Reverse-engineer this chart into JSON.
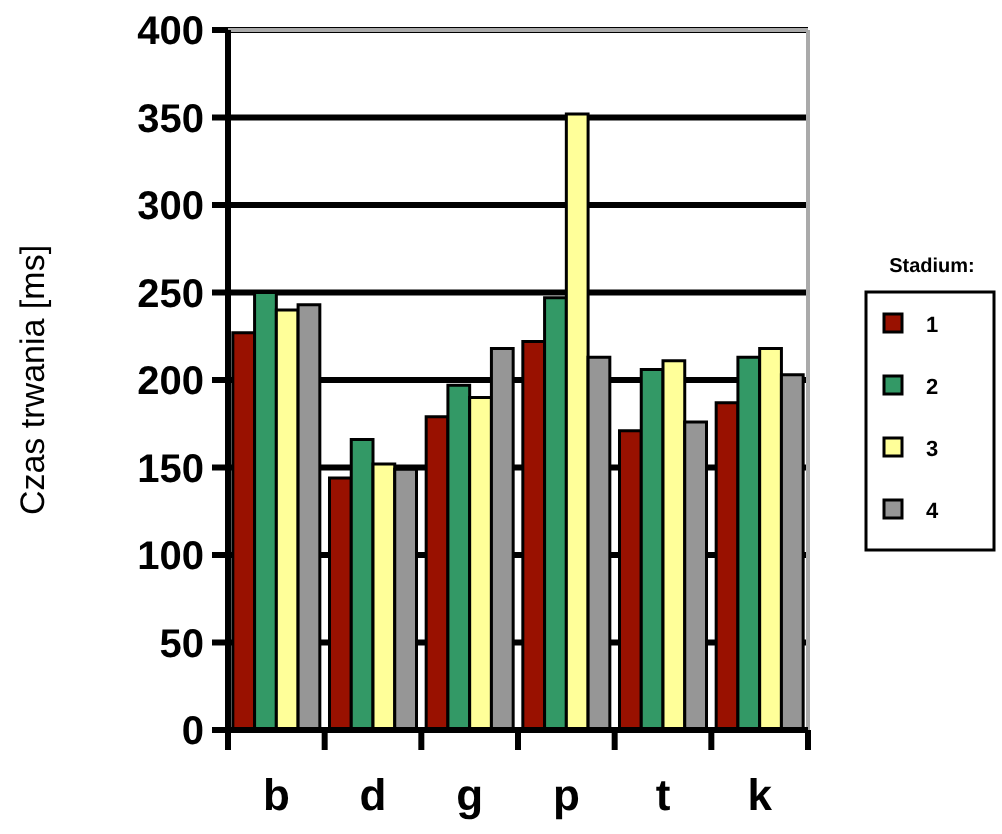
{
  "chart_data": {
    "type": "bar",
    "ylabel": "Czas trwania [ms]",
    "legend_title": "Stadium:",
    "categories": [
      "b",
      "d",
      "g",
      "p",
      "t",
      "k"
    ],
    "series": [
      {
        "name": "1",
        "color": "#991100",
        "values": [
          227,
          144,
          179,
          222,
          171,
          187
        ]
      },
      {
        "name": "2",
        "color": "#339966",
        "values": [
          250,
          166,
          197,
          247,
          206,
          213
        ]
      },
      {
        "name": "3",
        "color": "#ffff99",
        "values": [
          240,
          152,
          190,
          352,
          211,
          218
        ]
      },
      {
        "name": "4",
        "color": "#969696",
        "values": [
          243,
          149,
          218,
          213,
          176,
          203
        ]
      }
    ],
    "ylim": [
      0,
      400
    ],
    "yticks": [
      0,
      50,
      100,
      150,
      200,
      250,
      300,
      350,
      400
    ],
    "grid": "y",
    "legend": "right"
  }
}
